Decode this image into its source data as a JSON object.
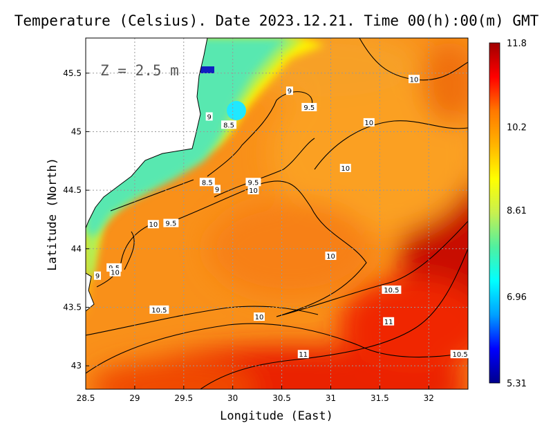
{
  "chart_data": {
    "type": "heatmap",
    "title": "Temperature (Celsius). Date 2023.12.21. Time 00(h):00(m)  GMT",
    "xlabel": "Longitude (East)",
    "ylabel": "Latitude (North)",
    "xlim": [
      28.5,
      32.4
    ],
    "ylim": [
      42.8,
      45.8
    ],
    "x_ticks": [
      "28.5",
      "29",
      "29.5",
      "30",
      "30.5",
      "31",
      "31.5",
      "32"
    ],
    "x_tick_values": [
      28.5,
      29,
      29.5,
      30,
      30.5,
      31,
      31.5,
      32
    ],
    "y_ticks": [
      "43",
      "43.5",
      "44",
      "44.5",
      "45",
      "45.5"
    ],
    "y_tick_values": [
      43,
      43.5,
      44,
      44.5,
      45,
      45.5
    ],
    "grid": true,
    "annotation": "Z = 2.5 m",
    "colorbar": {
      "min": 5.31,
      "max": 11.8,
      "tick_labels": [
        "11.8",
        "10.2",
        "8.61",
        "6.96",
        "5.31"
      ],
      "tick_values": [
        11.8,
        10.2,
        8.61,
        6.96,
        5.31
      ],
      "colormap": [
        "#00008c",
        "#0000ff",
        "#00a0ff",
        "#00ffff",
        "#50f0a0",
        "#c8f050",
        "#ffff00",
        "#ffb400",
        "#ff7800",
        "#ff0000",
        "#a00000"
      ]
    },
    "contour_labels": [
      {
        "text": "10",
        "lon": 31.85,
        "lat": 45.45
      },
      {
        "text": "9",
        "lon": 30.58,
        "lat": 45.35
      },
      {
        "text": "9.5",
        "lon": 30.78,
        "lat": 45.21
      },
      {
        "text": "9",
        "lon": 29.76,
        "lat": 45.13
      },
      {
        "text": "8.5",
        "lon": 29.96,
        "lat": 45.06
      },
      {
        "text": "10",
        "lon": 31.39,
        "lat": 45.08
      },
      {
        "text": "10",
        "lon": 31.15,
        "lat": 44.69
      },
      {
        "text": "8.5",
        "lon": 29.74,
        "lat": 44.57
      },
      {
        "text": "9.5",
        "lon": 30.21,
        "lat": 44.57
      },
      {
        "text": "9",
        "lon": 29.84,
        "lat": 44.51
      },
      {
        "text": "10",
        "lon": 30.21,
        "lat": 44.5
      },
      {
        "text": "10",
        "lon": 29.19,
        "lat": 44.21
      },
      {
        "text": "9.5",
        "lon": 29.37,
        "lat": 44.22
      },
      {
        "text": "10",
        "lon": 31.0,
        "lat": 43.94
      },
      {
        "text": "9.5",
        "lon": 28.79,
        "lat": 43.84
      },
      {
        "text": "10",
        "lon": 28.8,
        "lat": 43.8
      },
      {
        "text": "9",
        "lon": 28.62,
        "lat": 43.77
      },
      {
        "text": "10.5",
        "lon": 31.62,
        "lat": 43.65
      },
      {
        "text": "10.5",
        "lon": 29.25,
        "lat": 43.48
      },
      {
        "text": "10",
        "lon": 30.27,
        "lat": 43.42
      },
      {
        "text": "11",
        "lon": 31.59,
        "lat": 43.38
      },
      {
        "text": "11",
        "lon": 30.72,
        "lat": 43.1
      },
      {
        "text": "10.5",
        "lon": 32.32,
        "lat": 43.1
      }
    ]
  }
}
